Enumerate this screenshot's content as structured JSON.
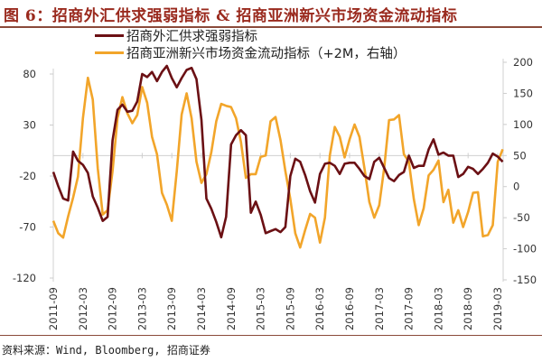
{
  "chart_data": {
    "type": "line",
    "title": "图 6：招商外汇供求强弱指标 & 招商亚洲新兴市场资金流动指标",
    "source": "资料来源：Wind, Bloomberg, 招商证券",
    "x_ticks": [
      "2011-09",
      "2012-03",
      "2012-09",
      "2013-03",
      "2013-09",
      "2014-03",
      "2014-09",
      "2015-03",
      "2015-09",
      "2016-03",
      "2016-09",
      "2017-03",
      "2017-09",
      "2018-03",
      "2018-09",
      "2019-03"
    ],
    "x": [
      "2011-09",
      "2011-10",
      "2011-11",
      "2011-12",
      "2012-01",
      "2012-02",
      "2012-03",
      "2012-04",
      "2012-05",
      "2012-06",
      "2012-07",
      "2012-08",
      "2012-09",
      "2012-10",
      "2012-11",
      "2012-12",
      "2013-01",
      "2013-02",
      "2013-03",
      "2013-04",
      "2013-05",
      "2013-06",
      "2013-07",
      "2013-08",
      "2013-09",
      "2013-10",
      "2013-11",
      "2013-12",
      "2014-01",
      "2014-02",
      "2014-03",
      "2014-04",
      "2014-05",
      "2014-06",
      "2014-07",
      "2014-08",
      "2014-09",
      "2014-10",
      "2014-11",
      "2014-12",
      "2015-01",
      "2015-02",
      "2015-03",
      "2015-04",
      "2015-05",
      "2015-06",
      "2015-07",
      "2015-08",
      "2015-09",
      "2015-10",
      "2015-11",
      "2015-12",
      "2016-01",
      "2016-02",
      "2016-03",
      "2016-04",
      "2016-05",
      "2016-06",
      "2016-07",
      "2016-08",
      "2016-09",
      "2016-10",
      "2016-11",
      "2016-12",
      "2017-01",
      "2017-02",
      "2017-03",
      "2017-04",
      "2017-05",
      "2017-06",
      "2017-07",
      "2017-08",
      "2017-09",
      "2017-10",
      "2017-11",
      "2017-12",
      "2018-01",
      "2018-02",
      "2018-03",
      "2018-04",
      "2018-05",
      "2018-06",
      "2018-07",
      "2018-08",
      "2018-09",
      "2018-10",
      "2018-11",
      "2018-12",
      "2019-01",
      "2019-02",
      "2019-03",
      "2019-04"
    ],
    "left_axis": {
      "ylim": [
        -120,
        80
      ],
      "ticks": [
        "80",
        "30",
        "-20",
        "-70",
        "-120"
      ]
    },
    "right_axis": {
      "ylim": [
        -150,
        200
      ],
      "ticks": [
        "200",
        "150",
        "100",
        "50",
        "0",
        "-50",
        "-100",
        "-150"
      ]
    },
    "grid": "single horizontal line at left 0 / right 50",
    "legend_position": "top",
    "series": [
      {
        "name": "招商外汇供求强弱指标",
        "axis": "left",
        "color": "#6b1014",
        "values": [
          -16,
          -30,
          -42,
          -44,
          4,
          -5,
          -9,
          -17,
          -40,
          -51,
          -64,
          -60,
          15,
          45,
          50,
          43,
          44,
          53,
          80,
          77,
          82,
          73,
          82,
          88,
          76,
          67,
          76,
          84,
          86,
          75,
          35,
          -42,
          -52,
          -65,
          -80,
          -60,
          11,
          20,
          25,
          20,
          -56,
          -45,
          -58,
          -76,
          -74,
          -72,
          -75,
          -70,
          -20,
          -3,
          -6,
          -19,
          -35,
          -46,
          -18,
          -8,
          -7,
          -10,
          -18,
          -8,
          -7,
          -7,
          -13,
          -20,
          -23,
          -6,
          -2,
          -12,
          -22,
          -25,
          -19,
          -16,
          0,
          -12,
          -10,
          -10,
          6,
          16,
          1,
          3,
          0,
          0,
          -21,
          -18,
          -11,
          -13,
          -18,
          -13,
          -7,
          2,
          -1,
          -6
        ]
      },
      {
        "name": "招商亚洲新兴市场资金流动指标（+2M，右轴）",
        "axis": "right",
        "color": "#f2a52a",
        "values": [
          -55,
          -75,
          -82,
          -48,
          -18,
          16,
          110,
          175,
          140,
          30,
          -45,
          -38,
          25,
          110,
          144,
          118,
          102,
          115,
          160,
          135,
          80,
          52,
          -10,
          -29,
          -55,
          25,
          116,
          150,
          110,
          40,
          6,
          20,
          55,
          105,
          133,
          130,
          128,
          110,
          72,
          14,
          20,
          20,
          48,
          50,
          105,
          112,
          75,
          25,
          -20,
          -75,
          -98,
          -70,
          -44,
          -50,
          -90,
          -50,
          50,
          96,
          80,
          47,
          76,
          100,
          80,
          30,
          -25,
          -50,
          -30,
          30,
          107,
          108,
          115,
          52,
          40,
          -20,
          -62,
          -35,
          18,
          27,
          42,
          -25,
          -5,
          -58,
          -38,
          -65,
          -41,
          -10,
          -9,
          -80,
          -78,
          -62,
          40,
          60
        ]
      }
    ]
  }
}
